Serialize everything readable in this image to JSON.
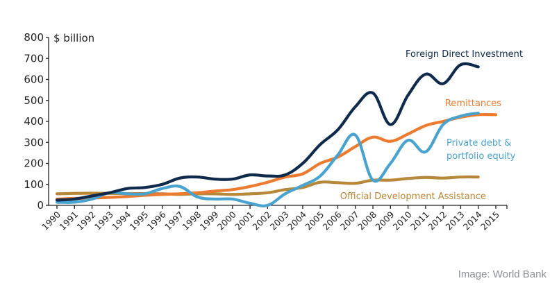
{
  "chart_data": {
    "type": "line",
    "title": "",
    "ylabel": "$ billion",
    "xlabel": "",
    "ylim": [
      0,
      800
    ],
    "yticks": [
      0,
      100,
      200,
      300,
      400,
      500,
      600,
      700,
      800
    ],
    "x": [
      "1990",
      "1991",
      "1992",
      "1993",
      "1994",
      "1995",
      "1996",
      "1997",
      "1998",
      "1999",
      "2000",
      "2001",
      "2002",
      "2003",
      "2004",
      "2005",
      "2006",
      "2007",
      "2008",
      "2009",
      "2010",
      "2011",
      "2012",
      "2013",
      "2014",
      "2015"
    ],
    "grid": false,
    "legend": "inline-labels",
    "series": [
      {
        "name": "Foreign Direct Investment",
        "color": "#0f2a4a",
        "values": [
          25,
          30,
          45,
          60,
          80,
          85,
          100,
          130,
          135,
          125,
          125,
          145,
          140,
          145,
          200,
          290,
          360,
          470,
          535,
          385,
          525,
          625,
          580,
          670,
          660,
          null
        ]
      },
      {
        "name": "Remittances",
        "color": "#ec7a2f",
        "values": [
          30,
          33,
          35,
          38,
          42,
          48,
          52,
          55,
          60,
          68,
          75,
          90,
          110,
          135,
          150,
          200,
          230,
          280,
          325,
          305,
          340,
          380,
          400,
          420,
          432,
          432
        ]
      },
      {
        "name": "Private debt & portfolio equity",
        "label_lines": [
          "Private debt &",
          "portfolio equity"
        ],
        "color": "#4aa3cf",
        "values": [
          15,
          15,
          30,
          60,
          55,
          55,
          80,
          90,
          40,
          30,
          30,
          10,
          0,
          55,
          95,
          140,
          240,
          335,
          120,
          200,
          310,
          255,
          385,
          425,
          440,
          null
        ]
      },
      {
        "name": "Official Development Assistance",
        "color": "#b8883a",
        "values": [
          55,
          57,
          58,
          57,
          56,
          56,
          55,
          52,
          55,
          55,
          52,
          55,
          60,
          75,
          85,
          110,
          108,
          105,
          120,
          120,
          128,
          133,
          130,
          135,
          135,
          null
        ]
      }
    ]
  },
  "credit": "Image: World Bank"
}
